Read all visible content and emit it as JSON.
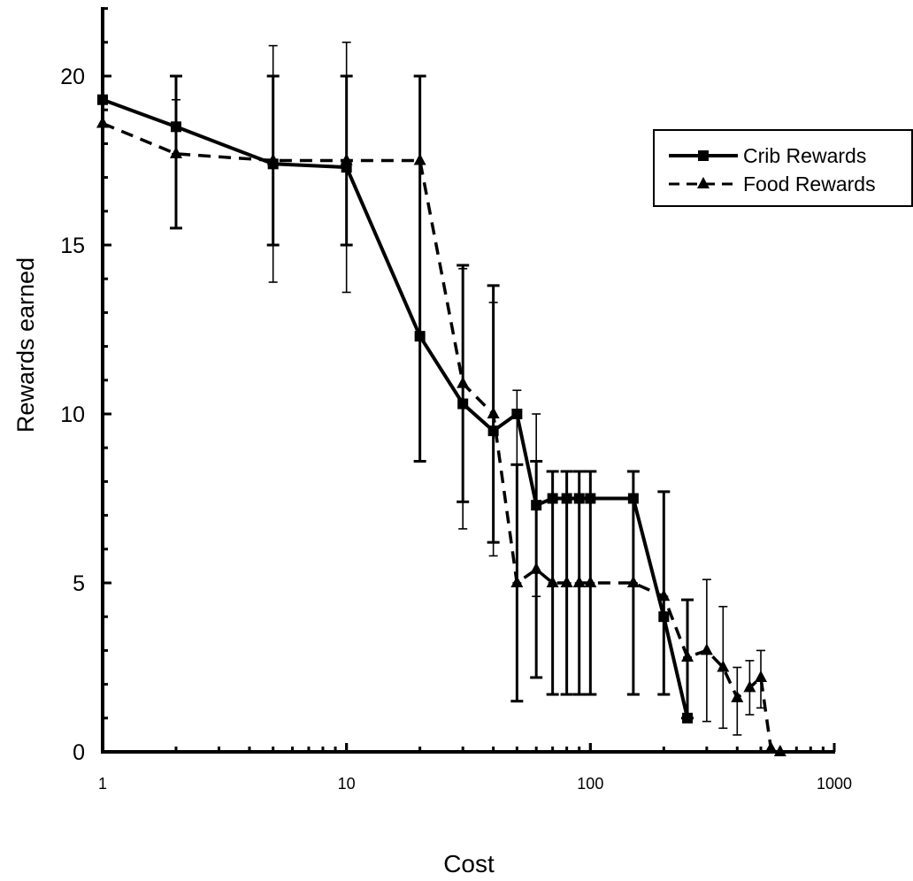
{
  "chart_data": {
    "type": "line",
    "title": "",
    "xlabel": "Cost",
    "ylabel": "Rewards earned",
    "xscale": "log",
    "xlim": [
      1,
      1000
    ],
    "ylim": [
      0,
      20
    ],
    "x_ticks": [
      "1",
      "10",
      "100",
      "1000"
    ],
    "y_ticks": [
      "0",
      "5",
      "10",
      "15",
      "20"
    ],
    "grid": false,
    "legend_position": "top-right",
    "series": [
      {
        "name": "Crib Rewards",
        "line_style": "solid",
        "marker": "square",
        "color": "#000000",
        "points": [
          {
            "x": 1,
            "y": 19.3,
            "err_low": 19.3,
            "err_high": 19.3
          },
          {
            "x": 2,
            "y": 18.5,
            "err_low": 15.5,
            "err_high": 20.0
          },
          {
            "x": 5,
            "y": 17.4,
            "err_low": 15.0,
            "err_high": 20.0
          },
          {
            "x": 10,
            "y": 17.3,
            "err_low": 15.0,
            "err_high": 20.0
          },
          {
            "x": 20,
            "y": 12.3,
            "err_low": 8.6,
            "err_high": 20.0
          },
          {
            "x": 30,
            "y": 10.3,
            "err_low": 7.4,
            "err_high": 14.4
          },
          {
            "x": 40,
            "y": 9.5,
            "err_low": 6.2,
            "err_high": 13.8
          },
          {
            "x": 50,
            "y": 10.0,
            "err_low": 1.5,
            "err_high": 8.5
          },
          {
            "x": 60,
            "y": 7.3,
            "err_low": 2.2,
            "err_high": 8.6
          },
          {
            "x": 70,
            "y": 7.5,
            "err_low": 1.7,
            "err_high": 8.3
          },
          {
            "x": 80,
            "y": 7.5,
            "err_low": 1.7,
            "err_high": 8.3
          },
          {
            "x": 90,
            "y": 7.5,
            "err_low": 1.7,
            "err_high": 8.3
          },
          {
            "x": 100,
            "y": 7.5,
            "err_low": 1.7,
            "err_high": 8.3
          },
          {
            "x": 150,
            "y": 7.5,
            "err_low": 1.7,
            "err_high": 8.3
          },
          {
            "x": 200,
            "y": 4.0,
            "err_low": 1.7,
            "err_high": 7.7
          },
          {
            "x": 250,
            "y": 1.0,
            "err_low": 1.0,
            "err_high": 4.5
          }
        ]
      },
      {
        "name": "Food Rewards",
        "line_style": "dashed",
        "marker": "triangle",
        "color": "#000000",
        "points": [
          {
            "x": 1,
            "y": 18.6,
            "err_low": 18.6,
            "err_high": 18.6
          },
          {
            "x": 2,
            "y": 17.7,
            "err_low": 17.7,
            "err_high": 19.3
          },
          {
            "x": 5,
            "y": 17.5,
            "err_low": 13.9,
            "err_high": 20.9
          },
          {
            "x": 10,
            "y": 17.5,
            "err_low": 13.6,
            "err_high": 21.0
          },
          {
            "x": 20,
            "y": 17.5,
            "err_low": 17.5,
            "err_high": 17.5
          },
          {
            "x": 30,
            "y": 10.9,
            "err_low": 6.6,
            "err_high": 14.3
          },
          {
            "x": 40,
            "y": 10.0,
            "err_low": 5.8,
            "err_high": 13.3
          },
          {
            "x": 50,
            "y": 5.0,
            "err_low": 5.0,
            "err_high": 10.7
          },
          {
            "x": 60,
            "y": 5.4,
            "err_low": 4.6,
            "err_high": 10.0
          },
          {
            "x": 70,
            "y": 5.0,
            "err_low": 5.0,
            "err_high": 8.3
          },
          {
            "x": 80,
            "y": 5.0,
            "err_low": 5.0,
            "err_high": 8.3
          },
          {
            "x": 90,
            "y": 5.0,
            "err_low": 5.0,
            "err_high": 8.3
          },
          {
            "x": 100,
            "y": 5.0,
            "err_low": 5.0,
            "err_high": 8.3
          },
          {
            "x": 150,
            "y": 5.0,
            "err_low": 5.0,
            "err_high": 8.3
          },
          {
            "x": 200,
            "y": 4.6,
            "err_low": 4.6,
            "err_high": 7.7
          },
          {
            "x": 250,
            "y": 2.8,
            "err_low": 2.8,
            "err_high": 4.5
          },
          {
            "x": 300,
            "y": 3.0,
            "err_low": 0.9,
            "err_high": 5.1
          },
          {
            "x": 350,
            "y": 2.5,
            "err_low": 0.7,
            "err_high": 4.3
          },
          {
            "x": 400,
            "y": 1.6,
            "err_low": 0.5,
            "err_high": 2.5
          },
          {
            "x": 450,
            "y": 1.9,
            "err_low": 1.1,
            "err_high": 2.7
          },
          {
            "x": 500,
            "y": 2.2,
            "err_low": 1.3,
            "err_high": 3.0
          },
          {
            "x": 550,
            "y": 0.1,
            "err_low": 0.1,
            "err_high": 0.1
          },
          {
            "x": 600,
            "y": 0.0,
            "err_low": 0.0,
            "err_high": 0.0
          }
        ]
      }
    ]
  }
}
